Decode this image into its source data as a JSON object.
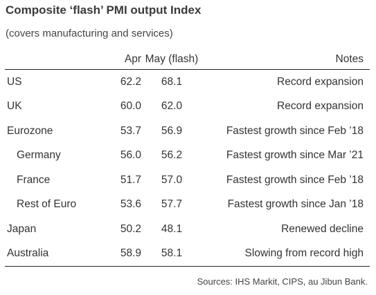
{
  "chart_data": {
    "type": "table",
    "title": "Composite ‘flash’ PMI output Index",
    "subtitle": "(covers manufacturing and services)",
    "columns": [
      "",
      "Apr",
      "May (flash)",
      "Notes"
    ],
    "rows": [
      {
        "region": "US",
        "apr": "62.2",
        "may": "68.1",
        "notes": "Record expansion",
        "indent": false
      },
      {
        "region": "UK",
        "apr": "60.0",
        "may": "62.0",
        "notes": "Record expansion",
        "indent": false
      },
      {
        "region": "Eurozone",
        "apr": "53.7",
        "may": "56.9",
        "notes": "Fastest growth since Feb ’18",
        "indent": false
      },
      {
        "region": "Germany",
        "apr": "56.0",
        "may": "56.2",
        "notes": "Fastest growth since Mar ’21",
        "indent": true
      },
      {
        "region": "France",
        "apr": "51.7",
        "may": "57.0",
        "notes": "Fastest growth since Feb ’18",
        "indent": true
      },
      {
        "region": "Rest of Euro",
        "apr": "53.6",
        "may": "57.7",
        "notes": "Fastest growth since Jan ’18",
        "indent": true
      },
      {
        "region": "Japan",
        "apr": "50.2",
        "may": "48.1",
        "notes": "Renewed decline",
        "indent": false
      },
      {
        "region": "Australia",
        "apr": "58.9",
        "may": "58.1",
        "notes": "Slowing from record high",
        "indent": false
      }
    ],
    "source": "Sources: IHS Markit, CIPS, au Jibun Bank."
  }
}
